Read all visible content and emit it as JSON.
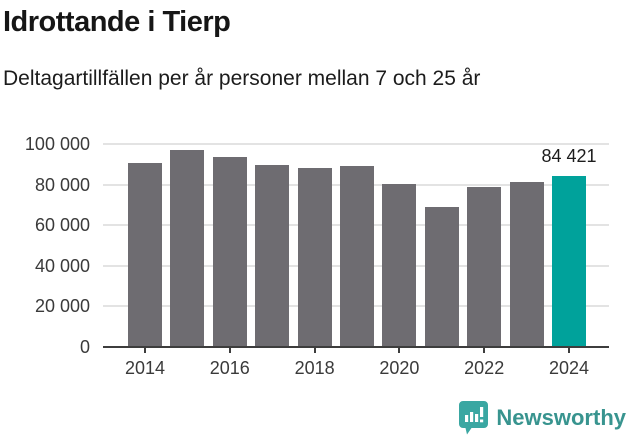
{
  "header": {
    "title": "Idrottande i Tierp",
    "subtitle": "Deltagartillfällen per år personer mellan 7 och 25 år"
  },
  "chart_data": {
    "type": "bar",
    "title": "Idrottande i Tierp",
    "subtitle": "Deltagartillfällen per år personer mellan 7 och 25 år",
    "categories": [
      "2014",
      "2015",
      "2016",
      "2017",
      "2018",
      "2019",
      "2020",
      "2021",
      "2022",
      "2023",
      "2024"
    ],
    "values": [
      90700,
      97000,
      93500,
      89700,
      88400,
      89300,
      80200,
      68900,
      78700,
      81100,
      84421
    ],
    "highlight_index": 10,
    "highlight_label": "84 421",
    "xlabel": "",
    "ylabel": "",
    "ylim": [
      0,
      100000
    ],
    "y_tick_values": [
      0,
      20000,
      40000,
      60000,
      80000,
      100000
    ],
    "y_tick_labels": [
      "0",
      "20 000",
      "40 000",
      "60 000",
      "80 000",
      "100 000"
    ],
    "x_tick_years": [
      "2014",
      "2016",
      "2018",
      "2020",
      "2022",
      "2024"
    ],
    "grid": "horizontal",
    "legend_position": "none",
    "colors": {
      "bar": "#6e6c71",
      "highlight": "#00a29b",
      "gridline": "#e3e3e3",
      "axis": "#3d3d3d",
      "tick_text": "#3a3a3a",
      "annotation_text": "#1c1c1c"
    }
  },
  "footer": {
    "brand": "Newsworthy",
    "brand_color": "#38948f",
    "icon_color": "#3aa7a2",
    "icon": "newsworthy-logo-icon"
  }
}
